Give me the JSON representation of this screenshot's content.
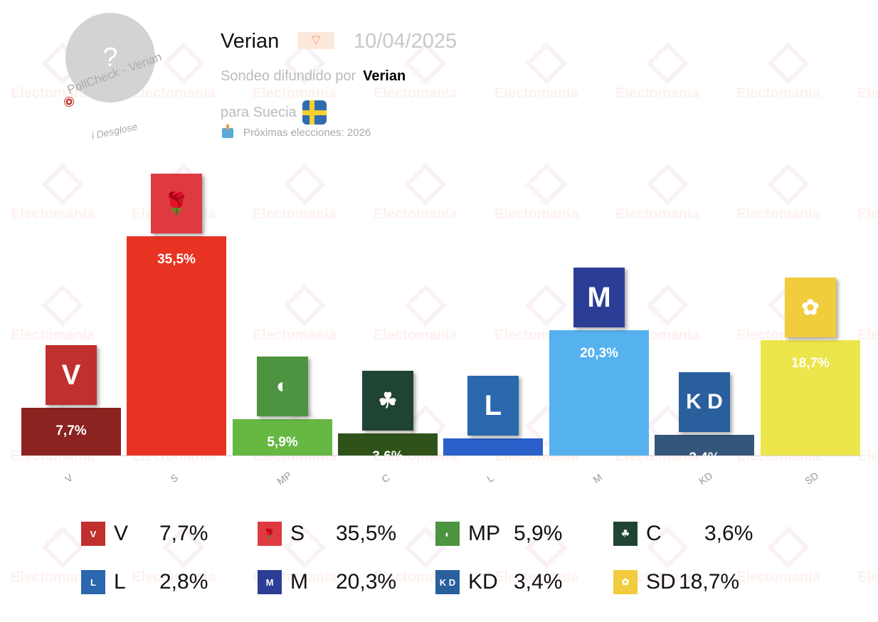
{
  "header": {
    "pollster": "Verian",
    "pollster_logo_icon": "verian-logo-icon",
    "date": "10/04/2025",
    "published_by_label": "Sondeo difundido por",
    "published_by": "Verian",
    "country_label": "para Suecia",
    "country_flag": "sweden-flag-icon",
    "next_elections": "Próximas elecciones: 2026",
    "avatar_placeholder": "?",
    "pollcheck_label": "PollCheck - Verian",
    "desglose_label": "i Desglose"
  },
  "watermark": "Electomanía",
  "chart_data": {
    "type": "bar",
    "title": "Verian 10/04/2025",
    "xlabel": "",
    "ylabel": "",
    "categories": [
      "V",
      "S",
      "MP",
      "C",
      "L",
      "M",
      "KD",
      "SD"
    ],
    "values": [
      7.7,
      35.5,
      5.9,
      3.6,
      2.8,
      20.3,
      3.4,
      18.7
    ],
    "labels": [
      "7,7%",
      "35,5%",
      "5,9%",
      "3,6%",
      "2,8%",
      "20,3%",
      "3,4%",
      "18,7%"
    ],
    "colors": [
      "#8b2320",
      "#e83323",
      "#66b843",
      "#2f5218",
      "#2b5fc9",
      "#55b2ee",
      "#34567a",
      "#ece54b"
    ],
    "grid": false,
    "legend_position": "bottom"
  },
  "parties": [
    {
      "abbr": "V",
      "value": "7,7%",
      "color": "#8b2320",
      "logo_bg": "#c0302e",
      "logo_text": "V",
      "icon": "v-party-logo-icon"
    },
    {
      "abbr": "S",
      "value": "35,5%",
      "color": "#e83323",
      "logo_bg": "#df3a3f",
      "logo_text": "🌹",
      "icon": "s-party-rose-icon"
    },
    {
      "abbr": "MP",
      "value": "5,9%",
      "color": "#66b843",
      "logo_bg": "#4d9440",
      "logo_text": "◐",
      "icon": "mp-dandelion-icon"
    },
    {
      "abbr": "C",
      "value": "3,6%",
      "color": "#2f5218",
      "logo_bg": "#1f4432",
      "logo_text": "☘",
      "icon": "c-clover-icon"
    },
    {
      "abbr": "L",
      "value": "2,8%",
      "color": "#2b5fc9",
      "logo_bg": "#2b67ad",
      "logo_text": "L",
      "icon": "l-party-logo-icon"
    },
    {
      "abbr": "M",
      "value": "20,3%",
      "color": "#55b2ee",
      "logo_bg": "#2c3d96",
      "logo_text": "M",
      "icon": "m-party-logo-icon"
    },
    {
      "abbr": "KD",
      "value": "3,4%",
      "color": "#34567a",
      "logo_bg": "#2a5f9e",
      "logo_text": "K D",
      "icon": "kd-party-logo-icon"
    },
    {
      "abbr": "SD",
      "value": "18,7%",
      "color": "#ece54b",
      "logo_bg": "#f1cc3c",
      "logo_text": "✿",
      "icon": "sd-flower-icon"
    }
  ]
}
